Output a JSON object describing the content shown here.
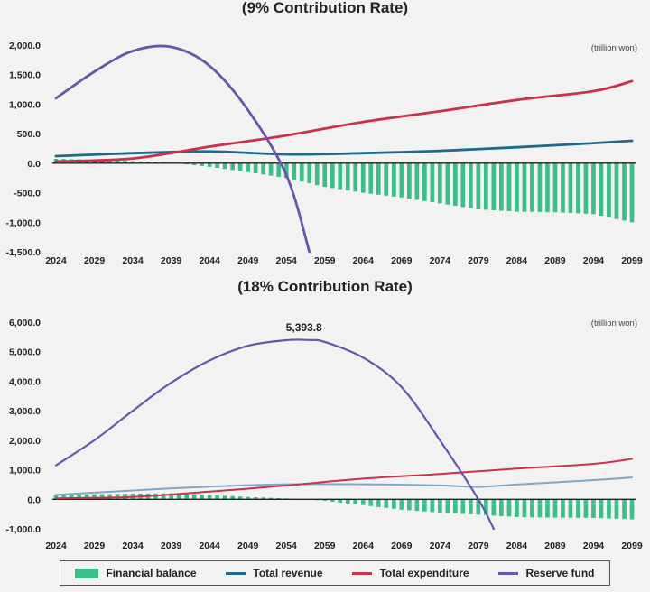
{
  "colors": {
    "balance": "#3dbd8a",
    "revenue": "#1d6a8c",
    "revenue_light": "#7ea7c9",
    "expenditure": "#c8324b",
    "reserve": "#6a55a8"
  },
  "legend": [
    {
      "label": "Financial balance",
      "key": "balance",
      "shape": "bar"
    },
    {
      "label": "Total revenue",
      "key": "revenue",
      "shape": "line"
    },
    {
      "label": "Total expenditure",
      "key": "expenditure",
      "shape": "line"
    },
    {
      "label": "Reserve fund",
      "key": "reserve",
      "shape": "line"
    }
  ],
  "chart_data": [
    {
      "type": "bar+line",
      "title": "(9% Contribution Rate)",
      "unit": "(trillion won)",
      "ylim": [
        -1500,
        2000
      ],
      "yticks": [
        "2,000.0",
        "1,500.0",
        "1,000.0",
        "500.0",
        "0.0",
        "-500.0",
        "-1,000.0",
        "-1,500.0"
      ],
      "ytick_values": [
        2000,
        1500,
        1000,
        500,
        0,
        -500,
        -1000,
        -1500
      ],
      "xticks": [
        "2024",
        "2029",
        "2034",
        "2039",
        "2044",
        "2049",
        "2054",
        "2059",
        "2064",
        "2069",
        "2074",
        "2079",
        "2084",
        "2089",
        "2094",
        "2099"
      ],
      "x_range": [
        2024,
        2099
      ],
      "series": [
        {
          "name": "Financial balance",
          "key": "balance",
          "type": "bar",
          "x": [
            2024,
            2029,
            2034,
            2039,
            2044,
            2049,
            2054,
            2059,
            2064,
            2069,
            2074,
            2079,
            2084,
            2089,
            2094,
            2099
          ],
          "y": [
            75,
            55,
            35,
            10,
            -60,
            -150,
            -250,
            -400,
            -500,
            -580,
            -680,
            -780,
            -820,
            -830,
            -860,
            -1000
          ]
        },
        {
          "name": "Total revenue",
          "key": "revenue",
          "type": "line",
          "x": [
            2024,
            2034,
            2044,
            2054,
            2064,
            2074,
            2084,
            2094,
            2099
          ],
          "y": [
            120,
            170,
            200,
            150,
            170,
            210,
            270,
            340,
            380
          ]
        },
        {
          "name": "Total expenditure",
          "key": "expenditure",
          "type": "line",
          "x": [
            2024,
            2034,
            2044,
            2054,
            2064,
            2074,
            2084,
            2094,
            2099
          ],
          "y": [
            30,
            80,
            280,
            470,
            700,
            880,
            1070,
            1220,
            1390
          ]
        },
        {
          "name": "Reserve fund",
          "key": "reserve",
          "type": "line",
          "x": [
            2024,
            2029,
            2034,
            2039,
            2044,
            2049,
            2054,
            2057
          ],
          "y": [
            1100,
            1550,
            1900,
            1970,
            1650,
            900,
            -200,
            -1500
          ]
        }
      ]
    },
    {
      "type": "bar+line",
      "title": "(18% Contribution Rate)",
      "unit": "(trillion won)",
      "peak_label": "5,393.8",
      "peak_x": 2057,
      "peak_y": 5393.8,
      "ylim": [
        -1000,
        6000
      ],
      "yticks": [
        "6,000.0",
        "5,000.0",
        "4,000.0",
        "3,000.0",
        "2,000.0",
        "1,000.0",
        "0.0",
        "-1,000.0"
      ],
      "ytick_values": [
        6000,
        5000,
        4000,
        3000,
        2000,
        1000,
        0,
        -1000
      ],
      "xticks": [
        "2024",
        "2029",
        "2034",
        "2039",
        "2044",
        "2049",
        "2054",
        "2059",
        "2064",
        "2069",
        "2074",
        "2079",
        "2084",
        "2089",
        "2094",
        "2099"
      ],
      "x_range": [
        2024,
        2099
      ],
      "series": [
        {
          "name": "Financial balance",
          "key": "balance",
          "type": "bar",
          "x": [
            2024,
            2029,
            2034,
            2039,
            2044,
            2049,
            2054,
            2059,
            2064,
            2069,
            2074,
            2079,
            2084,
            2089,
            2094,
            2099
          ],
          "y": [
            140,
            170,
            190,
            200,
            150,
            80,
            30,
            -50,
            -200,
            -350,
            -450,
            -520,
            -600,
            -620,
            -630,
            -680
          ]
        },
        {
          "name": "Total revenue",
          "key": "revenue_light",
          "type": "line",
          "x": [
            2024,
            2034,
            2044,
            2054,
            2064,
            2074,
            2079,
            2084,
            2094,
            2099
          ],
          "y": [
            150,
            300,
            430,
            510,
            510,
            470,
            420,
            500,
            650,
            740
          ]
        },
        {
          "name": "Total expenditure",
          "key": "expenditure",
          "type": "line",
          "x": [
            2024,
            2034,
            2044,
            2054,
            2064,
            2074,
            2084,
            2094,
            2099
          ],
          "y": [
            30,
            80,
            260,
            470,
            700,
            860,
            1040,
            1200,
            1370
          ]
        },
        {
          "name": "Reserve fund",
          "key": "reserve",
          "type": "line",
          "x": [
            2024,
            2029,
            2034,
            2039,
            2044,
            2049,
            2054,
            2057,
            2059,
            2064,
            2069,
            2074,
            2079,
            2081
          ],
          "y": [
            1150,
            2000,
            3000,
            3950,
            4700,
            5200,
            5390,
            5393.8,
            5330,
            4800,
            3800,
            2000,
            0,
            -1000
          ]
        }
      ]
    }
  ]
}
